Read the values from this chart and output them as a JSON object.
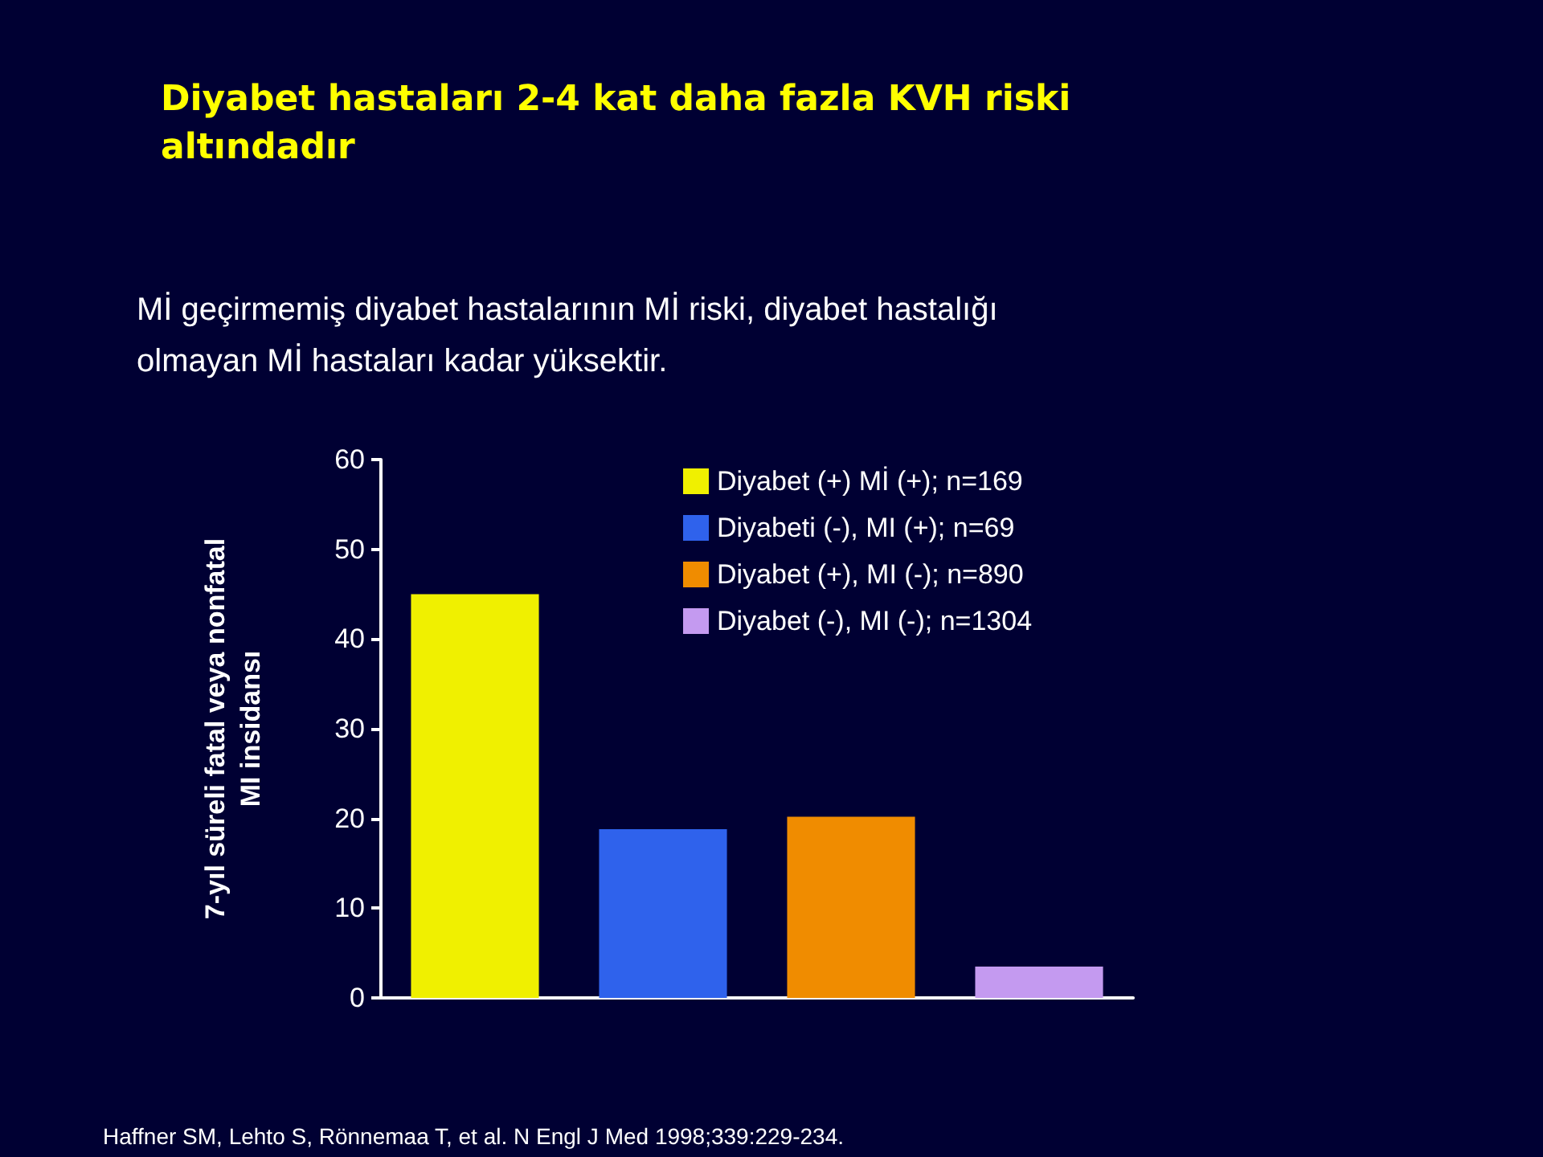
{
  "chart_data": {
    "type": "bar",
    "title": "Diyabet hastaları 2-4 kat daha fazla KVH riski altındadır",
    "subtitle": "Mİ geçirmemiş diyabet hastalarının Mİ riski, diyabet hastalığı olmayan Mİ hastaları kadar yüksektir.",
    "ylabel": "7-yıl süreli fatal veya nonfatal\nMI insidansı",
    "categories": [
      null,
      null,
      null,
      null
    ],
    "series": [
      {
        "name": "Diyabet (+) Mİ (+); n=169",
        "color": "#f0f000",
        "values": [
          45,
          null,
          null,
          null
        ]
      },
      {
        "name": "Diyabeti (-), MI (+); n=69",
        "color": "#2f62ec",
        "values": [
          null,
          18.8,
          null,
          null
        ]
      },
      {
        "name": "Diyabet (+), MI (-); n=890",
        "color": "#f08c00",
        "values": [
          null,
          null,
          20.2,
          null
        ]
      },
      {
        "name": "Diyabet (-), MI (-); n=1304",
        "color": "#c49af0",
        "values": [
          null,
          null,
          null,
          3.5
        ]
      }
    ],
    "stacked": true,
    "ylim": [
      0,
      60
    ],
    "yticks": [
      0,
      10,
      20,
      30,
      40,
      50,
      60
    ],
    "grid": false,
    "legend": "top right",
    "annotations": [
      "Haffner SM, Lehto S, Rönnemaa T, et al. N Engl J Med 1998;339:229-234."
    ]
  }
}
